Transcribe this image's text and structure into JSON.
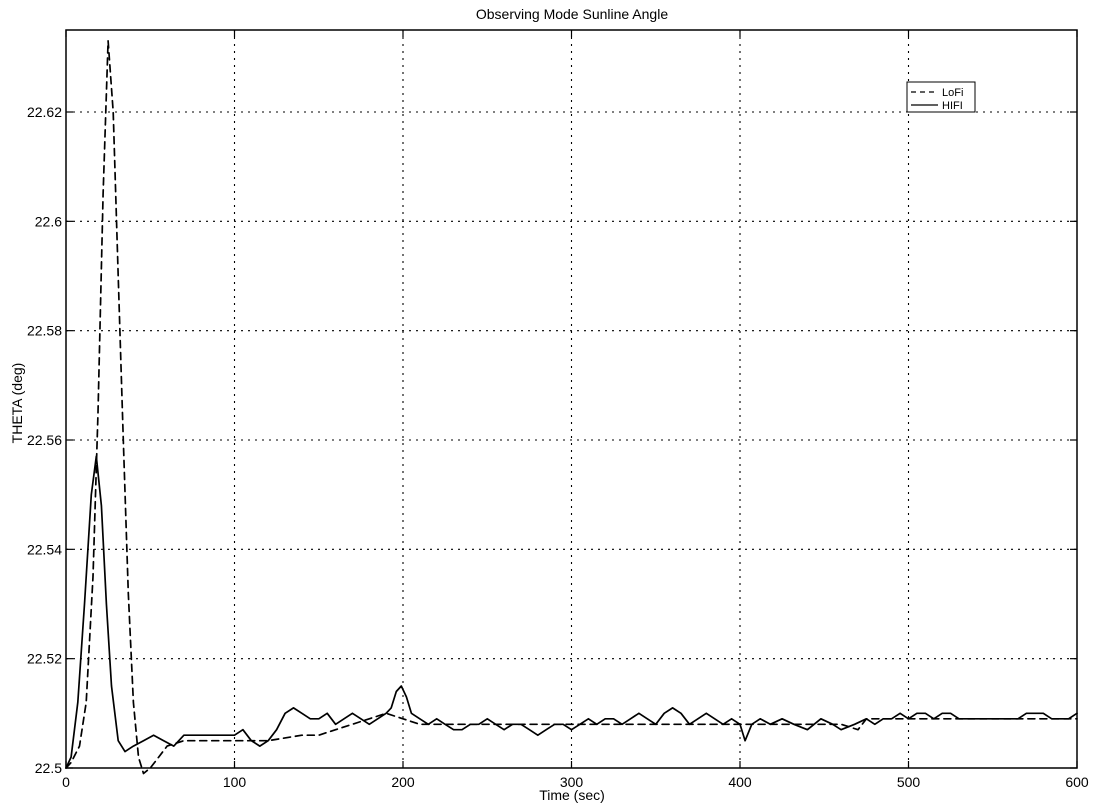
{
  "chart_data": {
    "type": "line",
    "title": "Observing Mode Sunline Angle",
    "xlabel": "Time (sec)",
    "ylabel": "THETA (deg)",
    "xlim": [
      0,
      600
    ],
    "ylim": [
      22.5,
      22.635
    ],
    "xticks": [
      0,
      100,
      200,
      300,
      400,
      500,
      600
    ],
    "xtick_labels": [
      "0",
      "100",
      "200",
      "300",
      "400",
      "500",
      "600"
    ],
    "yticks": [
      22.5,
      22.52,
      22.54,
      22.56,
      22.58,
      22.6,
      22.62
    ],
    "ytick_labels": [
      "22.5",
      "22.52",
      "22.54",
      "22.56",
      "22.58",
      "22.6",
      "22.62"
    ],
    "grid": true,
    "legend_position": "top-right",
    "series": [
      {
        "name": "LoFi",
        "style": "dashed",
        "color": "#000000",
        "points": [
          [
            0,
            22.5
          ],
          [
            3,
            22.501
          ],
          [
            8,
            22.504
          ],
          [
            12,
            22.512
          ],
          [
            16,
            22.535
          ],
          [
            19,
            22.565
          ],
          [
            22,
            22.605
          ],
          [
            25,
            22.633
          ],
          [
            28,
            22.62
          ],
          [
            31,
            22.59
          ],
          [
            34,
            22.56
          ],
          [
            37,
            22.532
          ],
          [
            40,
            22.512
          ],
          [
            43,
            22.502
          ],
          [
            46,
            22.499
          ],
          [
            50,
            22.5
          ],
          [
            55,
            22.502
          ],
          [
            60,
            22.504
          ],
          [
            70,
            22.505
          ],
          [
            80,
            22.505
          ],
          [
            100,
            22.505
          ],
          [
            120,
            22.505
          ],
          [
            140,
            22.506
          ],
          [
            150,
            22.506
          ],
          [
            160,
            22.507
          ],
          [
            180,
            22.509
          ],
          [
            190,
            22.51
          ],
          [
            200,
            22.509
          ],
          [
            210,
            22.508
          ],
          [
            230,
            22.508
          ],
          [
            300,
            22.508
          ],
          [
            350,
            22.508
          ],
          [
            400,
            22.508
          ],
          [
            450,
            22.508
          ],
          [
            460,
            22.508
          ],
          [
            470,
            22.507
          ],
          [
            475,
            22.509
          ],
          [
            500,
            22.509
          ],
          [
            550,
            22.509
          ],
          [
            600,
            22.509
          ]
        ]
      },
      {
        "name": "HIFI",
        "style": "solid",
        "color": "#000000",
        "points": [
          [
            0,
            22.5
          ],
          [
            3,
            22.502
          ],
          [
            7,
            22.512
          ],
          [
            11,
            22.53
          ],
          [
            15,
            22.55
          ],
          [
            18,
            22.557
          ],
          [
            21,
            22.548
          ],
          [
            24,
            22.53
          ],
          [
            27,
            22.515
          ],
          [
            31,
            22.505
          ],
          [
            35,
            22.503
          ],
          [
            40,
            22.504
          ],
          [
            46,
            22.505
          ],
          [
            52,
            22.506
          ],
          [
            58,
            22.505
          ],
          [
            64,
            22.504
          ],
          [
            70,
            22.506
          ],
          [
            80,
            22.506
          ],
          [
            90,
            22.506
          ],
          [
            100,
            22.506
          ],
          [
            105,
            22.507
          ],
          [
            110,
            22.505
          ],
          [
            115,
            22.504
          ],
          [
            120,
            22.505
          ],
          [
            125,
            22.507
          ],
          [
            130,
            22.51
          ],
          [
            135,
            22.511
          ],
          [
            140,
            22.51
          ],
          [
            145,
            22.509
          ],
          [
            150,
            22.509
          ],
          [
            155,
            22.51
          ],
          [
            160,
            22.508
          ],
          [
            165,
            22.509
          ],
          [
            170,
            22.51
          ],
          [
            175,
            22.509
          ],
          [
            180,
            22.508
          ],
          [
            185,
            22.509
          ],
          [
            190,
            22.51
          ],
          [
            193,
            22.511
          ],
          [
            196,
            22.514
          ],
          [
            199,
            22.515
          ],
          [
            202,
            22.513
          ],
          [
            205,
            22.51
          ],
          [
            210,
            22.509
          ],
          [
            215,
            22.508
          ],
          [
            220,
            22.509
          ],
          [
            225,
            22.508
          ],
          [
            230,
            22.507
          ],
          [
            235,
            22.507
          ],
          [
            240,
            22.508
          ],
          [
            245,
            22.508
          ],
          [
            250,
            22.509
          ],
          [
            255,
            22.508
          ],
          [
            260,
            22.507
          ],
          [
            265,
            22.508
          ],
          [
            270,
            22.508
          ],
          [
            275,
            22.507
          ],
          [
            280,
            22.506
          ],
          [
            285,
            22.507
          ],
          [
            290,
            22.508
          ],
          [
            295,
            22.508
          ],
          [
            300,
            22.507
          ],
          [
            305,
            22.508
          ],
          [
            310,
            22.509
          ],
          [
            315,
            22.508
          ],
          [
            320,
            22.509
          ],
          [
            325,
            22.509
          ],
          [
            330,
            22.508
          ],
          [
            335,
            22.509
          ],
          [
            340,
            22.51
          ],
          [
            345,
            22.509
          ],
          [
            350,
            22.508
          ],
          [
            355,
            22.51
          ],
          [
            360,
            22.511
          ],
          [
            365,
            22.51
          ],
          [
            370,
            22.508
          ],
          [
            375,
            22.509
          ],
          [
            380,
            22.51
          ],
          [
            385,
            22.509
          ],
          [
            390,
            22.508
          ],
          [
            395,
            22.509
          ],
          [
            400,
            22.508
          ],
          [
            403,
            22.505
          ],
          [
            407,
            22.508
          ],
          [
            412,
            22.509
          ],
          [
            418,
            22.508
          ],
          [
            425,
            22.509
          ],
          [
            432,
            22.508
          ],
          [
            440,
            22.507
          ],
          [
            448,
            22.509
          ],
          [
            455,
            22.508
          ],
          [
            460,
            22.507
          ],
          [
            468,
            22.508
          ],
          [
            475,
            22.509
          ],
          [
            480,
            22.508
          ],
          [
            485,
            22.509
          ],
          [
            490,
            22.509
          ],
          [
            495,
            22.51
          ],
          [
            500,
            22.509
          ],
          [
            505,
            22.51
          ],
          [
            510,
            22.51
          ],
          [
            515,
            22.509
          ],
          [
            520,
            22.51
          ],
          [
            525,
            22.51
          ],
          [
            530,
            22.509
          ],
          [
            535,
            22.509
          ],
          [
            540,
            22.509
          ],
          [
            545,
            22.509
          ],
          [
            550,
            22.509
          ],
          [
            555,
            22.509
          ],
          [
            560,
            22.509
          ],
          [
            565,
            22.509
          ],
          [
            570,
            22.51
          ],
          [
            575,
            22.51
          ],
          [
            580,
            22.51
          ],
          [
            585,
            22.509
          ],
          [
            590,
            22.509
          ],
          [
            595,
            22.509
          ],
          [
            600,
            22.51
          ]
        ]
      }
    ]
  }
}
